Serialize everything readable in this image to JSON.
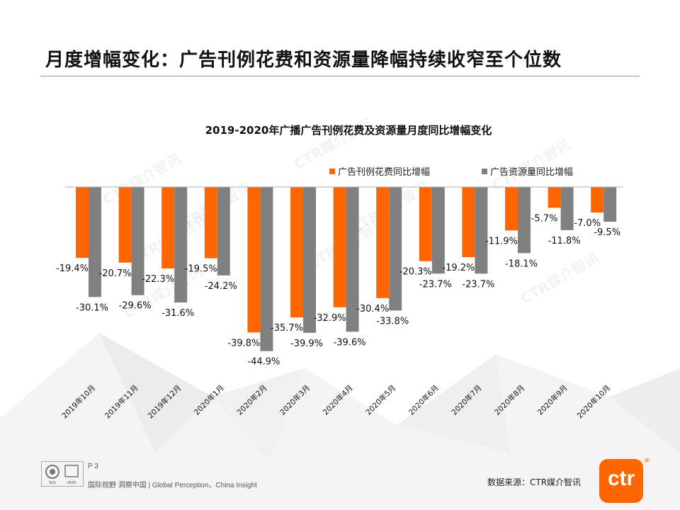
{
  "page_title": "月度增幅变化：广告刊例花费和资源量降幅持续收窄至个位数",
  "footer": {
    "page_number": "P 3",
    "tagline": "国际视野  洞察中国 | Global Perception，China Insight",
    "source": "数据来源：CTR媒介智讯",
    "logo_text": "ctr",
    "logo_mark": "®",
    "cert_labels": [
      "SGS",
      "UKAS"
    ]
  },
  "watermark": "CTR媒介智讯",
  "colors": {
    "spend": "#ff6600",
    "resource": "#808080",
    "accent": "#ff6600"
  },
  "chart_data": {
    "type": "bar",
    "title": "2019-2020年广播广告刊例花费及资源量月度同比增幅变化",
    "categories": [
      "2019年10月",
      "2019年11月",
      "2019年12月",
      "2020年1月",
      "2020年2月",
      "2020年3月",
      "2020年4月",
      "2020年5月",
      "2020年6月",
      "2020年7月",
      "2020年8月",
      "2020年9月",
      "2020年10月"
    ],
    "series": [
      {
        "name": "广告刊例花费同比增幅",
        "color": "#ff6600",
        "values": [
          -19.4,
          -20.7,
          -22.3,
          -19.5,
          -39.8,
          -35.7,
          -32.9,
          -30.4,
          -20.3,
          -19.2,
          -11.9,
          -5.7,
          -7.0
        ],
        "labels": [
          "-19.4%",
          "-20.7%",
          "-22.3%",
          "-19.5%",
          "-39.8%",
          "-35.7%",
          "-32.9%",
          "-30.4%",
          "-20.3%",
          "-19.2%",
          "-11.9%",
          "-5.7%",
          "-7.0%"
        ]
      },
      {
        "name": "广告资源量同比增幅",
        "color": "#808080",
        "values": [
          -30.1,
          -29.6,
          -31.6,
          -24.2,
          -44.9,
          -39.9,
          -39.6,
          -33.8,
          -23.7,
          -23.7,
          -18.1,
          -11.8,
          -9.5
        ],
        "labels": [
          "-30.1%",
          "-29.6%",
          "-31.6%",
          "-24.2%",
          "-44.9%",
          "-39.9%",
          "-39.6%",
          "-33.8%",
          "-23.7%",
          "-23.7%",
          "-18.1%",
          "-11.8%",
          "-9.5%"
        ]
      }
    ],
    "ylim": [
      -50,
      0
    ],
    "legend_position": "top-right",
    "grid": false,
    "data_labels": true
  }
}
